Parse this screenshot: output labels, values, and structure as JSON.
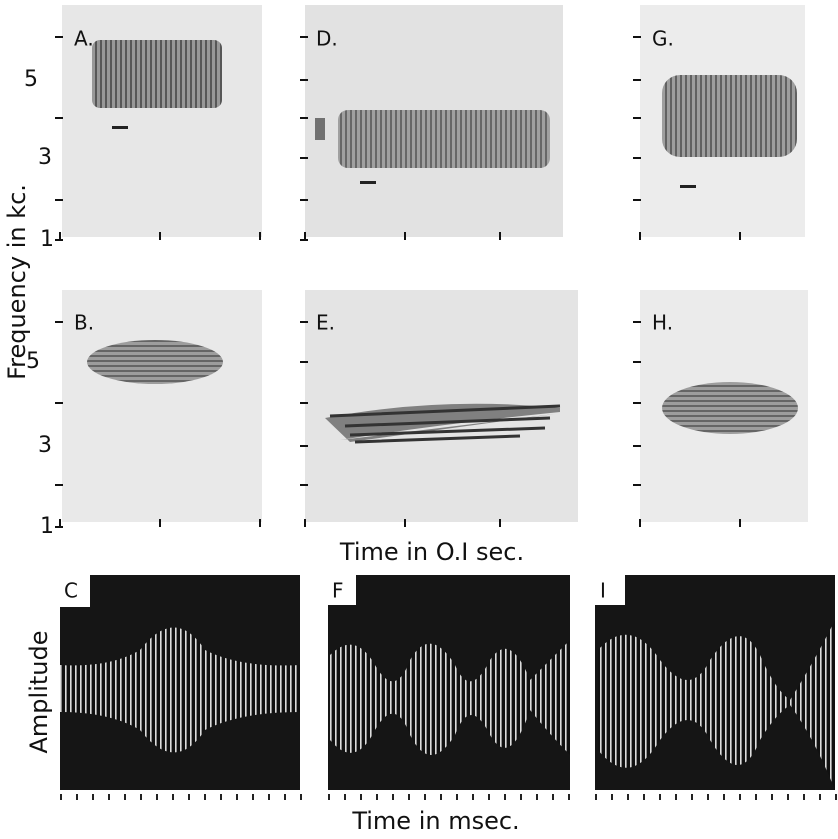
{
  "figure": {
    "y_label_top": "Frequency in kc.",
    "x_label_middle": "Time in O.I sec.",
    "y_label_bottom": "Amplitude",
    "x_label_bottom": "Time in msec.",
    "frequency_tick_labels": [
      "5",
      "3",
      "1"
    ],
    "panels": [
      {
        "label": "A."
      },
      {
        "label": "D."
      },
      {
        "label": "G."
      },
      {
        "label": "B."
      },
      {
        "label": "E."
      },
      {
        "label": "H."
      },
      {
        "label": "C"
      },
      {
        "label": "F"
      },
      {
        "label": "I"
      }
    ]
  }
}
